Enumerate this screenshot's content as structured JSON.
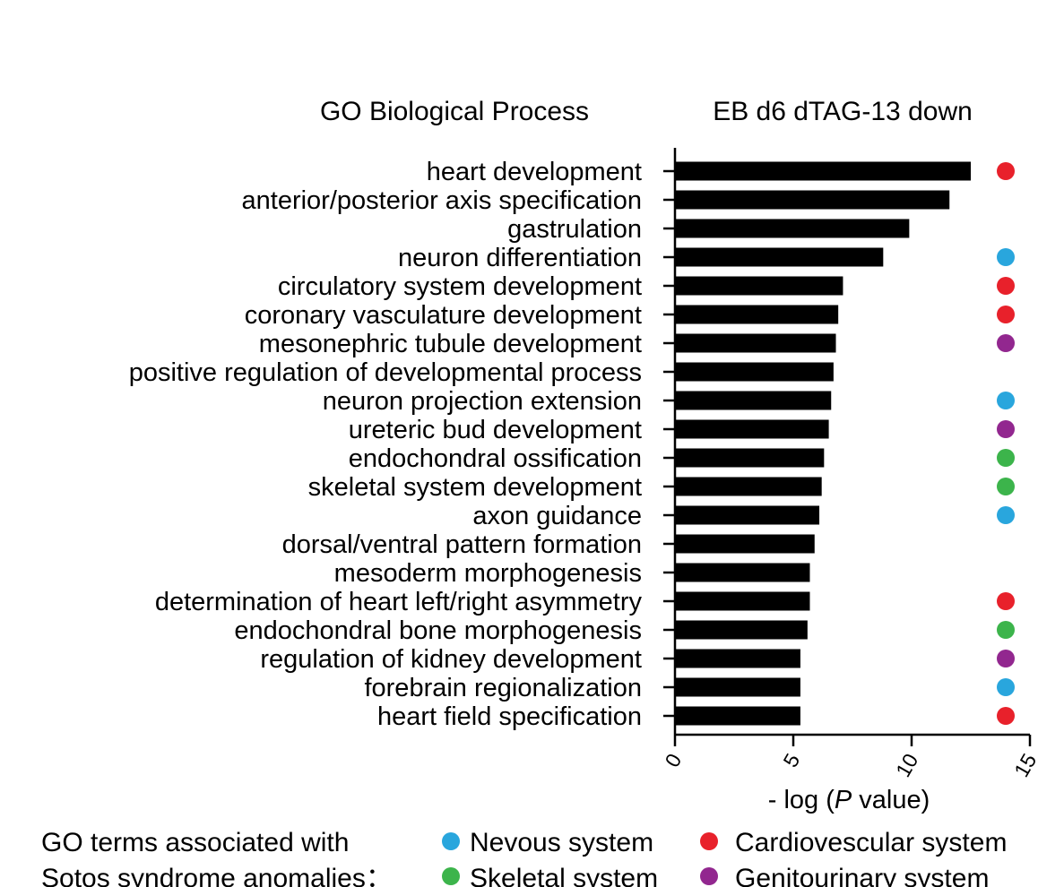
{
  "header": {
    "left_title": "GO Biological Process",
    "right_title": "EB d6 dTAG-13 down"
  },
  "chart_data": {
    "type": "bar",
    "orientation": "horizontal",
    "categories": [
      "heart development",
      "anterior/posterior axis specification",
      "gastrulation",
      "neuron differentiation",
      "circulatory system development",
      "coronary vasculature development",
      "mesonephric tubule development",
      "positive regulation of developmental process",
      "neuron projection extension",
      "ureteric bud development",
      "endochondral ossification",
      "skeletal system development",
      "axon guidance",
      "dorsal/ventral pattern formation",
      "mesoderm morphogenesis",
      "determination of heart left/right asymmetry",
      "endochondral bone morphogenesis",
      "regulation of kidney development",
      "forebrain regionalization",
      "heart field specification"
    ],
    "values": [
      12.5,
      11.6,
      9.9,
      8.8,
      7.1,
      6.9,
      6.8,
      6.7,
      6.6,
      6.5,
      6.3,
      6.2,
      6.1,
      5.9,
      5.7,
      5.7,
      5.6,
      5.3,
      5.3,
      5.3
    ],
    "system": [
      "cardio",
      "",
      "",
      "nervous",
      "cardio",
      "cardio",
      "genito",
      "",
      "nervous",
      "genito",
      "skeletal",
      "skeletal",
      "nervous",
      "",
      "",
      "cardio",
      "skeletal",
      "genito",
      "nervous",
      "cardio"
    ],
    "xlabel_prefix": "- log (",
    "xlabel_italic": "P",
    "xlabel_suffix": " value)",
    "xlim": [
      0,
      15
    ],
    "xticks": [
      "0",
      "5",
      "10",
      "15"
    ],
    "bar_color": "#000000"
  },
  "legend": {
    "title_line1": "GO terms associated with",
    "title_line2": "Sotos syndrome anomalies：",
    "items": [
      {
        "key": "nervous",
        "label": "Nevous system",
        "color": "#29a6dd"
      },
      {
        "key": "cardio",
        "label": "Cardiovescular system",
        "color": "#e8212b"
      },
      {
        "key": "skeletal",
        "label": "Skeletal system",
        "color": "#3cb44b"
      },
      {
        "key": "genito",
        "label": "Genitourinary system",
        "color": "#92278f"
      }
    ]
  }
}
